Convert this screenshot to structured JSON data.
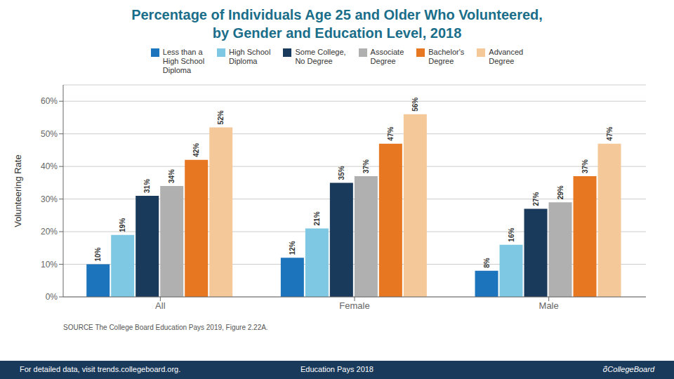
{
  "chart_data": {
    "type": "bar",
    "title": "Percentage of Individuals Age 25 and Older Who Volunteered,\nby Gender and Education Level, 2018",
    "ylabel": "Volunteering Rate",
    "categories": [
      "All",
      "Female",
      "Male"
    ],
    "series": [
      {
        "name": "Less than a\nHigh School\nDiploma",
        "color": "#1c75bc",
        "values": [
          10,
          12,
          8
        ],
        "value_labels": [
          "10%",
          "12%",
          "8%"
        ]
      },
      {
        "name": "High School\nDiploma",
        "color": "#7ec8e3",
        "values": [
          19,
          21,
          16
        ],
        "value_labels": [
          "19%",
          "21%",
          "16%"
        ]
      },
      {
        "name": "Some College,\nNo Degree",
        "color": "#1a3a5c",
        "values": [
          31,
          35,
          27
        ],
        "value_labels": [
          "31%",
          "35%",
          "27%"
        ]
      },
      {
        "name": "Associate\nDegree",
        "color": "#b0b0b0",
        "values": [
          34,
          37,
          29
        ],
        "value_labels": [
          "34%",
          "37%",
          "29%"
        ]
      },
      {
        "name": "Bachelor's\nDegree",
        "color": "#e87722",
        "values": [
          42,
          47,
          37
        ],
        "value_labels": [
          "42%",
          "47%",
          "37%"
        ]
      },
      {
        "name": "Advanced\nDegree",
        "color": "#f5c89a",
        "values": [
          52,
          56,
          47
        ],
        "value_labels": [
          "52%",
          "56%",
          "47%"
        ]
      }
    ],
    "ylim": [
      0,
      65
    ],
    "yticks": [
      {
        "value": 0,
        "label": "0%"
      },
      {
        "value": 10,
        "label": "10%"
      },
      {
        "value": 20,
        "label": "20%"
      },
      {
        "value": 30,
        "label": "30%"
      },
      {
        "value": 40,
        "label": "40%"
      },
      {
        "value": 50,
        "label": "50%"
      },
      {
        "value": 60,
        "label": "60%"
      }
    ],
    "grid": true,
    "legend": "top",
    "data_labels": true,
    "annotations": [
      "SOURCE  The College Board Education Pays 2019, Figure 2.22A.",
      "For detailed data, visit trends.collegeboard.org.",
      "Education Pays 2018",
      "ô⃗CollegeBoard"
    ]
  }
}
